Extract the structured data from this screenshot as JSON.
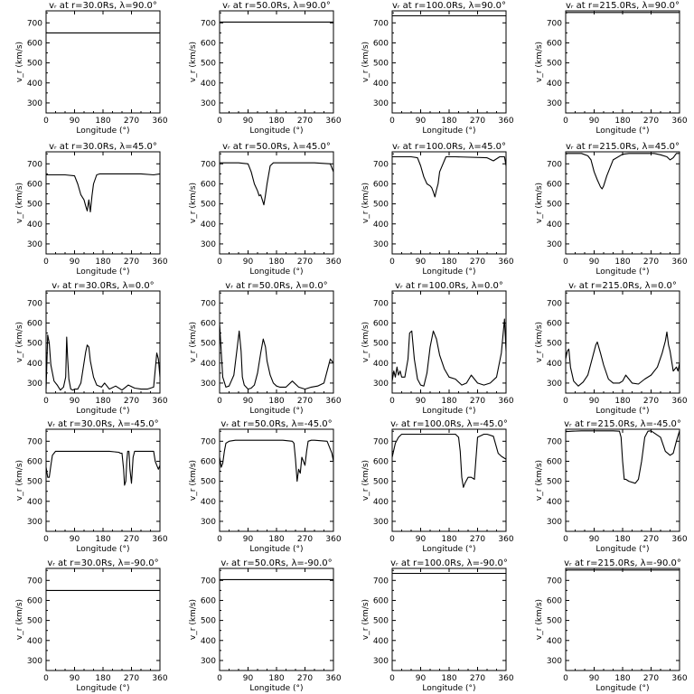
{
  "chart_data": {
    "type": "line",
    "rows": 5,
    "cols": 4,
    "xlim": [
      0,
      360
    ],
    "ylim": [
      250,
      760
    ],
    "xticks": [
      "0",
      "90",
      "180",
      "270",
      "360"
    ],
    "yticks": [
      "300",
      "400",
      "500",
      "600",
      "700"
    ],
    "xlabel": "Longitude (°)",
    "ylabel": "v_r (km/s)",
    "grid": false,
    "panels": [
      {
        "title": "vᵣ at r=30.0Rs, λ=90.0°",
        "x": [
          0,
          360
        ],
        "y": [
          650,
          650
        ]
      },
      {
        "title": "vᵣ at r=50.0Rs, λ=90.0°",
        "x": [
          0,
          360
        ],
        "y": [
          704,
          704
        ]
      },
      {
        "title": "vᵣ at r=100.0Rs, λ=90.0°",
        "x": [
          0,
          360
        ],
        "y": [
          735,
          735
        ]
      },
      {
        "title": "vᵣ at r=215.0Rs, λ=90.0°",
        "x": [
          0,
          360
        ],
        "y": [
          752,
          752
        ]
      },
      {
        "title": "vᵣ at r=30.0Rs, λ=45.0°",
        "x": [
          0,
          60,
          90,
          100,
          110,
          120,
          125,
          130,
          135,
          140,
          145,
          150,
          160,
          170,
          200,
          300,
          340,
          360
        ],
        "y": [
          645,
          645,
          640,
          600,
          545,
          520,
          490,
          465,
          520,
          460,
          540,
          600,
          645,
          650,
          650,
          650,
          645,
          650
        ]
      },
      {
        "title": "vᵣ at r=50.0Rs, λ=45.0°",
        "x": [
          0,
          60,
          90,
          100,
          110,
          120,
          125,
          130,
          135,
          140,
          145,
          150,
          160,
          170,
          200,
          300,
          350,
          360
        ],
        "y": [
          705,
          705,
          700,
          660,
          600,
          565,
          540,
          545,
          520,
          495,
          545,
          600,
          690,
          705,
          705,
          705,
          700,
          660
        ]
      },
      {
        "title": "vᵣ at r=100.0Rs, λ=45.0°",
        "x": [
          0,
          60,
          80,
          90,
          100,
          110,
          120,
          125,
          130,
          135,
          140,
          145,
          150,
          170,
          200,
          300,
          320,
          340,
          355,
          360
        ],
        "y": [
          735,
          735,
          730,
          690,
          635,
          600,
          590,
          580,
          560,
          535,
          570,
          600,
          660,
          735,
          735,
          730,
          715,
          735,
          735,
          690
        ]
      },
      {
        "title": "vᵣ at r=215.0Rs, λ=45.0°",
        "x": [
          0,
          50,
          70,
          80,
          90,
          100,
          110,
          115,
          120,
          130,
          150,
          180,
          200,
          280,
          300,
          320,
          330,
          340,
          350,
          360
        ],
        "y": [
          752,
          752,
          740,
          720,
          660,
          620,
          585,
          575,
          590,
          640,
          720,
          748,
          752,
          752,
          745,
          735,
          720,
          730,
          752,
          752
        ]
      },
      {
        "title": "vᵣ at r=30.0Rs, λ=0.0°",
        "x": [
          0,
          5,
          10,
          15,
          25,
          35,
          45,
          55,
          62,
          65,
          68,
          72,
          78,
          85,
          90,
          100,
          110,
          125,
          130,
          135,
          140,
          150,
          160,
          175,
          185,
          200,
          220,
          240,
          260,
          280,
          300,
          320,
          340,
          350,
          355,
          360
        ],
        "y": [
          270,
          540,
          500,
          390,
          310,
          290,
          265,
          280,
          330,
          530,
          430,
          320,
          270,
          265,
          270,
          270,
          300,
          455,
          490,
          480,
          410,
          330,
          290,
          280,
          300,
          270,
          285,
          265,
          290,
          275,
          270,
          270,
          280,
          450,
          420,
          330
        ]
      },
      {
        "title": "vᵣ at r=50.0Rs, λ=0.0°",
        "x": [
          0,
          5,
          10,
          20,
          30,
          45,
          55,
          62,
          68,
          72,
          78,
          90,
          100,
          110,
          120,
          130,
          138,
          145,
          150,
          160,
          170,
          180,
          190,
          210,
          230,
          250,
          270,
          290,
          310,
          330,
          350,
          360
        ],
        "y": [
          600,
          460,
          330,
          280,
          285,
          340,
          470,
          560,
          460,
          330,
          290,
          270,
          275,
          290,
          350,
          450,
          520,
          480,
          410,
          340,
          300,
          285,
          280,
          280,
          310,
          280,
          270,
          280,
          285,
          300,
          420,
          400
        ]
      },
      {
        "title": "vᵣ at r=100.0Rs, λ=0.0°",
        "x": [
          0,
          5,
          10,
          15,
          20,
          25,
          30,
          40,
          50,
          55,
          62,
          70,
          80,
          90,
          100,
          110,
          120,
          130,
          140,
          150,
          165,
          180,
          200,
          220,
          235,
          250,
          270,
          290,
          310,
          330,
          345,
          355,
          360
        ],
        "y": [
          310,
          360,
          330,
          380,
          340,
          360,
          330,
          330,
          420,
          550,
          560,
          420,
          320,
          290,
          285,
          350,
          480,
          560,
          520,
          440,
          370,
          330,
          320,
          290,
          300,
          340,
          300,
          290,
          300,
          330,
          450,
          620,
          460
        ]
      },
      {
        "title": "vᵣ at r=215.0Rs, λ=0.0°",
        "x": [
          0,
          5,
          10,
          15,
          25,
          40,
          55,
          70,
          85,
          95,
          100,
          110,
          120,
          135,
          150,
          170,
          180,
          190,
          200,
          210,
          230,
          250,
          270,
          290,
          305,
          315,
          320,
          325,
          330,
          340,
          345,
          350,
          355,
          360
        ],
        "y": [
          420,
          460,
          470,
          380,
          310,
          285,
          305,
          340,
          430,
          490,
          505,
          450,
          390,
          320,
          300,
          300,
          310,
          340,
          320,
          300,
          295,
          320,
          340,
          380,
          450,
          510,
          555,
          490,
          460,
          360,
          370,
          380,
          360,
          400
        ]
      },
      {
        "title": "vᵣ at r=30.0Rs, λ=-45.0°",
        "x": [
          0,
          5,
          10,
          15,
          20,
          30,
          40,
          60,
          100,
          200,
          230,
          235,
          240,
          245,
          248,
          252,
          255,
          258,
          262,
          265,
          270,
          275,
          280,
          285,
          290,
          300,
          340,
          345,
          350,
          355,
          360
        ],
        "y": [
          570,
          520,
          520,
          580,
          630,
          650,
          650,
          650,
          650,
          650,
          645,
          640,
          640,
          560,
          480,
          500,
          600,
          650,
          650,
          560,
          490,
          620,
          650,
          650,
          650,
          650,
          650,
          600,
          580,
          560,
          580
        ]
      },
      {
        "title": "vᵣ at r=50.0Rs, λ=-45.0°",
        "x": [
          0,
          5,
          10,
          15,
          20,
          30,
          50,
          100,
          200,
          230,
          235,
          240,
          245,
          250,
          255,
          260,
          265,
          270,
          275,
          280,
          290,
          300,
          340,
          355,
          360
        ],
        "y": [
          620,
          570,
          590,
          650,
          690,
          700,
          705,
          705,
          705,
          700,
          690,
          610,
          500,
          560,
          540,
          620,
          600,
          580,
          650,
          700,
          705,
          705,
          700,
          640,
          600
        ]
      },
      {
        "title": "vᵣ at r=100.0Rs, λ=-45.0°",
        "x": [
          0,
          10,
          20,
          30,
          40,
          100,
          200,
          210,
          215,
          220,
          225,
          230,
          240,
          250,
          260,
          270,
          290,
          300,
          320,
          335,
          345,
          350,
          360
        ],
        "y": [
          620,
          690,
          720,
          735,
          735,
          735,
          735,
          720,
          650,
          520,
          470,
          490,
          520,
          520,
          510,
          720,
          735,
          735,
          725,
          640,
          625,
          620,
          610
        ]
      },
      {
        "title": "vᵣ at r=215.0Rs, λ=-45.0°",
        "x": [
          0,
          20,
          50,
          100,
          150,
          170,
          175,
          180,
          185,
          190,
          200,
          220,
          230,
          240,
          250,
          260,
          270,
          300,
          315,
          330,
          340,
          350,
          360
        ],
        "y": [
          748,
          750,
          752,
          752,
          752,
          750,
          720,
          600,
          510,
          510,
          500,
          490,
          510,
          600,
          720,
          750,
          752,
          720,
          650,
          630,
          640,
          700,
          752
        ]
      },
      {
        "title": "vᵣ at r=30.0Rs, λ=-90.0°",
        "x": [
          0,
          360
        ],
        "y": [
          650,
          650
        ]
      },
      {
        "title": "vᵣ at r=50.0Rs, λ=-90.0°",
        "x": [
          0,
          360
        ],
        "y": [
          704,
          704
        ]
      },
      {
        "title": "vᵣ at r=100.0Rs, λ=-90.0°",
        "x": [
          0,
          360
        ],
        "y": [
          735,
          735
        ]
      },
      {
        "title": "vᵣ at r=215.0Rs, λ=-90.0°",
        "x": [
          0,
          360
        ],
        "y": [
          752,
          752
        ]
      }
    ]
  }
}
